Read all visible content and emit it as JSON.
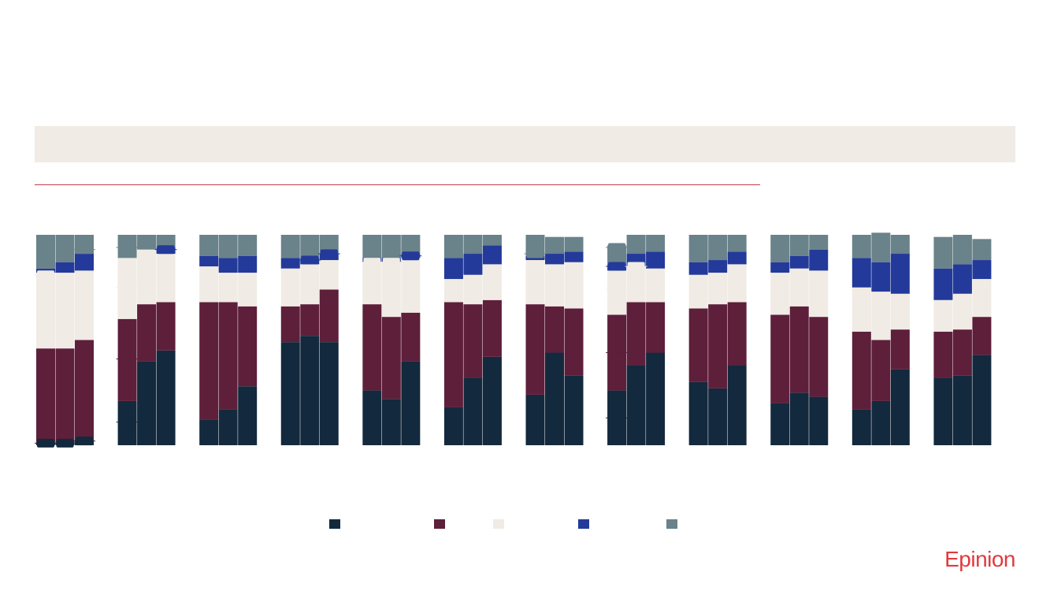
{
  "brand": "Epinion",
  "colors": {
    "banner_bg": "#F0EBE4",
    "rule": "#C23B4A",
    "brand": "#E03A3E"
  },
  "chart_data": {
    "type": "bar",
    "stacked": true,
    "percent": true,
    "groups": 12,
    "bars_per_group": 3,
    "ylim": [
      0,
      100
    ],
    "series": [
      {
        "name": "",
        "color": "#13293D",
        "values": [
          1,
          1,
          2,
          21,
          40,
          45,
          12,
          17,
          28,
          49,
          52,
          49,
          26,
          22,
          40,
          18,
          32,
          42,
          24,
          44,
          33,
          26,
          38,
          44,
          30,
          27,
          38,
          20,
          25,
          23,
          17,
          21,
          36,
          32,
          33,
          43
        ]
      },
      {
        "name": "",
        "color": "#5E1F3B",
        "values": [
          45,
          45,
          48,
          39,
          27,
          23,
          56,
          51,
          38,
          17,
          15,
          25,
          41,
          39,
          23,
          50,
          35,
          27,
          43,
          22,
          32,
          36,
          30,
          24,
          35,
          40,
          30,
          42,
          41,
          38,
          37,
          29,
          19,
          22,
          22,
          18
        ]
      },
      {
        "name": "",
        "color": "#F0EBE4",
        "values": [
          36,
          36,
          33,
          29,
          26,
          23,
          17,
          14,
          16,
          18,
          19,
          14,
          20,
          26,
          26,
          11,
          14,
          17,
          21,
          20,
          22,
          21,
          17,
          16,
          16,
          15,
          18,
          20,
          18,
          22,
          21,
          23,
          17,
          15,
          17,
          18
        ]
      },
      {
        "name": "",
        "color": "#233A9A",
        "values": [
          2,
          5,
          8,
          0,
          0,
          3,
          5,
          7,
          8,
          5,
          3,
          3,
          2,
          2,
          2,
          10,
          10,
          9,
          2,
          5,
          5,
          3,
          6,
          8,
          6,
          6,
          6,
          5,
          6,
          10,
          14,
          14,
          19,
          15,
          14,
          9
        ]
      },
      {
        "name": "",
        "color": "#6A828A",
        "values": [
          16,
          13,
          9,
          11,
          7,
          6,
          10,
          11,
          10,
          11,
          11,
          9,
          11,
          11,
          9,
          11,
          9,
          5,
          10,
          8,
          7,
          9,
          9,
          8,
          13,
          12,
          8,
          13,
          10,
          7,
          11,
          14,
          9,
          15,
          14,
          10
        ]
      }
    ],
    "markers": [
      {
        "bar": 0,
        "value": 81
      },
      {
        "bar": 0,
        "value": 1
      },
      {
        "bar": 1,
        "value": 1
      },
      {
        "bar": 2,
        "value": 2
      },
      {
        "bar": 2,
        "value": 93
      },
      {
        "bar": 3,
        "value": 94
      },
      {
        "bar": 3,
        "value": 75
      },
      {
        "bar": 3,
        "value": 41
      },
      {
        "bar": 3,
        "value": 11
      },
      {
        "bar": 5,
        "value": 93
      },
      {
        "bar": 10,
        "value": 88
      },
      {
        "bar": 11,
        "value": 91
      },
      {
        "bar": 12,
        "value": 87
      },
      {
        "bar": 13,
        "value": 87
      },
      {
        "bar": 14,
        "value": 90
      },
      {
        "bar": 18,
        "value": 91
      },
      {
        "bar": 21,
        "value": 94
      },
      {
        "bar": 21,
        "value": 74
      },
      {
        "bar": 21,
        "value": 44
      },
      {
        "bar": 21,
        "value": 13
      },
      {
        "bar": 21,
        "value": 85
      },
      {
        "bar": 22,
        "value": 85
      }
    ]
  }
}
